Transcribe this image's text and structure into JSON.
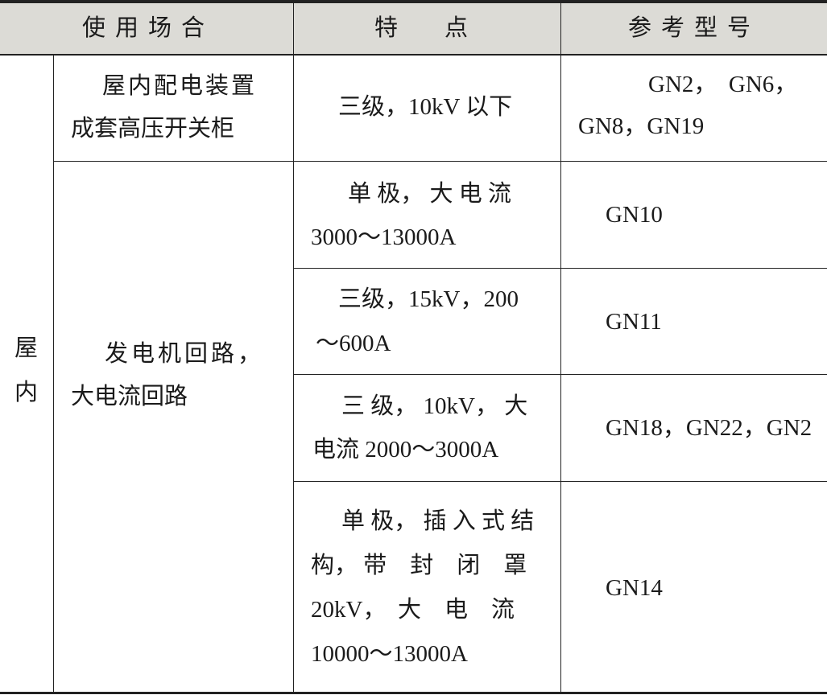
{
  "headers": [
    "使用场合",
    "特　　点",
    "参考型号"
  ],
  "group_label": [
    "屋",
    "内"
  ],
  "rows": [
    {
      "usage": [
        "屋内配电装置",
        "成套高压开关柜"
      ],
      "feature": [
        "三级，10kV 以下"
      ],
      "model": [
        "GN2，　GN6，",
        "GN8，GN19"
      ]
    },
    {
      "usage": [
        "发电机回路，",
        "大电流回路"
      ],
      "feature": [
        "单 极， 大 电 流",
        "3000～13000A"
      ],
      "model": [
        "GN10"
      ]
    },
    {
      "feature": [
        "三级，15kV，200",
        "～600A"
      ],
      "model": [
        "GN11"
      ]
    },
    {
      "feature": [
        "三 级， 10kV， 大",
        "电流 2000～3000A"
      ],
      "model": [
        "GN18，GN22，GN2"
      ]
    },
    {
      "feature": [
        "单 极， 插 入 式 结",
        "构， 带　封　闭　罩",
        "20kV，　大　电　流",
        "10000～13000A"
      ],
      "model": [
        "GN14"
      ]
    }
  ],
  "colors": {
    "header_bg": "#dcdbd6",
    "rule": "#222222"
  }
}
